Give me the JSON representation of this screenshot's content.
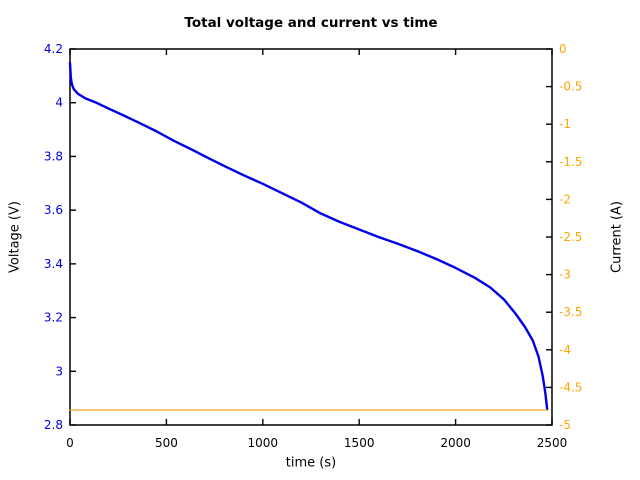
{
  "title": "Total voltage and current vs time",
  "axes": {
    "x": {
      "label": "time (s)",
      "min": 0,
      "max": 2500,
      "tick_labels": [
        "0",
        "500",
        "1000",
        "1500",
        "2000",
        "2500"
      ],
      "tick_values": [
        0,
        500,
        1000,
        1500,
        2000,
        2500
      ],
      "color": "#000000"
    },
    "y_left": {
      "label": "Voltage (V)",
      "min": 2.8,
      "max": 4.2,
      "tick_labels": [
        "4.2",
        "4",
        "3.8",
        "3.6",
        "3.4",
        "3.2",
        "3",
        "2.8"
      ],
      "tick_values": [
        4.2,
        4.0,
        3.8,
        3.6,
        3.4,
        3.2,
        3.0,
        2.8
      ],
      "color": "#0000e0"
    },
    "y_right": {
      "label": "Current (A)",
      "min": -5,
      "max": 0,
      "tick_labels": [
        "0",
        "-0.5",
        "-1",
        "-1.5",
        "-2",
        "-2.5",
        "-3",
        "-3.5",
        "-4",
        "-4.5",
        "-5"
      ],
      "tick_values": [
        0,
        -0.5,
        -1,
        -1.5,
        -2,
        -2.5,
        -3,
        -3.5,
        -4,
        -4.5,
        -5
      ],
      "color": "#ffa500"
    }
  },
  "chart_data": {
    "type": "line",
    "title": "Total voltage and current vs time",
    "xlabel": "time (s)",
    "ylabel_left": "Voltage (V)",
    "ylabel_right": "Current (A)",
    "xlim": [
      0,
      2500
    ],
    "ylim_left": [
      2.8,
      4.2
    ],
    "ylim_right": [
      -5,
      0
    ],
    "grid": false,
    "legend": "none",
    "series": [
      {
        "name": "total-voltage",
        "axis": "left",
        "color": "#0000e8",
        "line_width": 2.4,
        "x": [
          0,
          4,
          10,
          20,
          40,
          80,
          130,
          200,
          280,
          360,
          450,
          540,
          630,
          720,
          810,
          900,
          1000,
          1100,
          1200,
          1300,
          1400,
          1500,
          1600,
          1700,
          1800,
          1900,
          2000,
          2100,
          2180,
          2250,
          2310,
          2360,
          2400,
          2430,
          2452,
          2465,
          2472,
          2475
        ],
        "y": [
          4.148,
          4.095,
          4.068,
          4.05,
          4.034,
          4.016,
          4.002,
          3.978,
          3.952,
          3.925,
          3.893,
          3.858,
          3.826,
          3.793,
          3.761,
          3.73,
          3.698,
          3.663,
          3.628,
          3.588,
          3.556,
          3.528,
          3.5,
          3.475,
          3.448,
          3.418,
          3.385,
          3.348,
          3.312,
          3.268,
          3.215,
          3.165,
          3.115,
          3.055,
          2.983,
          2.92,
          2.878,
          2.858
        ]
      },
      {
        "name": "current",
        "axis": "right",
        "color": "#e8a420",
        "line_width": 1.3,
        "x": [
          0,
          2475
        ],
        "y": [
          -4.8,
          -4.8
        ]
      }
    ]
  }
}
